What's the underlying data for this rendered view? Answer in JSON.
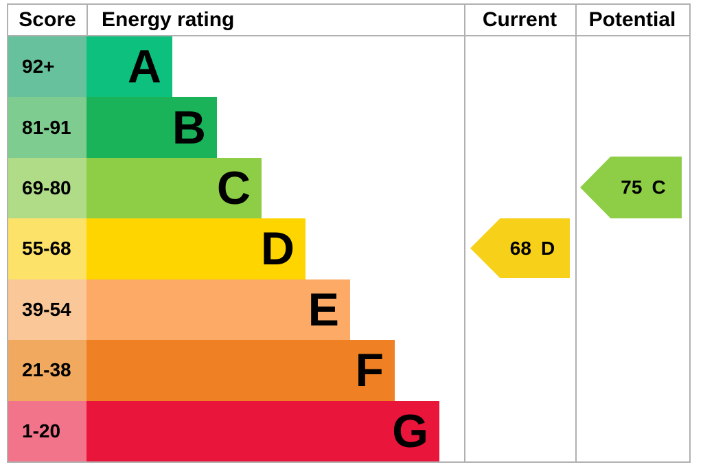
{
  "header": {
    "score": "Score",
    "energy_rating": "Energy rating",
    "current": "Current",
    "potential": "Potential"
  },
  "bands": [
    {
      "letter": "A",
      "score": "92+",
      "color": "#0ec07d",
      "score_bg": "#66c19c"
    },
    {
      "letter": "B",
      "score": "81-91",
      "color": "#1bb35a",
      "score_bg": "#7ecc8f"
    },
    {
      "letter": "C",
      "score": "69-80",
      "color": "#8dce46",
      "score_bg": "#b0dc88"
    },
    {
      "letter": "D",
      "score": "55-68",
      "color": "#ffd500",
      "score_bg": "#fde26a"
    },
    {
      "letter": "E",
      "score": "39-54",
      "color": "#fcaa65",
      "score_bg": "#fac898"
    },
    {
      "letter": "F",
      "score": "21-38",
      "color": "#ef8023",
      "score_bg": "#f0a95f"
    },
    {
      "letter": "G",
      "score": "1-20",
      "color": "#e9153b",
      "score_bg": "#f1748a"
    }
  ],
  "current": {
    "value": "68",
    "letter": "D",
    "color": "#f7d019"
  },
  "potential": {
    "value": "75",
    "letter": "C",
    "color": "#8dce46"
  },
  "chart_data": {
    "type": "bar",
    "title": "Energy rating",
    "categories": [
      "A",
      "B",
      "C",
      "D",
      "E",
      "F",
      "G"
    ],
    "score_ranges": [
      "92+",
      "81-91",
      "69-80",
      "55-68",
      "39-54",
      "21-38",
      "1-20"
    ],
    "band_colors": [
      "#0ec07d",
      "#1bb35a",
      "#8dce46",
      "#ffd500",
      "#fcaa65",
      "#ef8023",
      "#e9153b"
    ],
    "bar_relative_lengths": [
      1,
      2,
      3,
      4,
      5,
      6,
      7
    ],
    "columns": [
      "Score",
      "Energy rating",
      "Current",
      "Potential"
    ],
    "current": {
      "value": 68,
      "band": "D"
    },
    "potential": {
      "value": 75,
      "band": "C"
    },
    "legend_position": "none",
    "grid": false
  }
}
